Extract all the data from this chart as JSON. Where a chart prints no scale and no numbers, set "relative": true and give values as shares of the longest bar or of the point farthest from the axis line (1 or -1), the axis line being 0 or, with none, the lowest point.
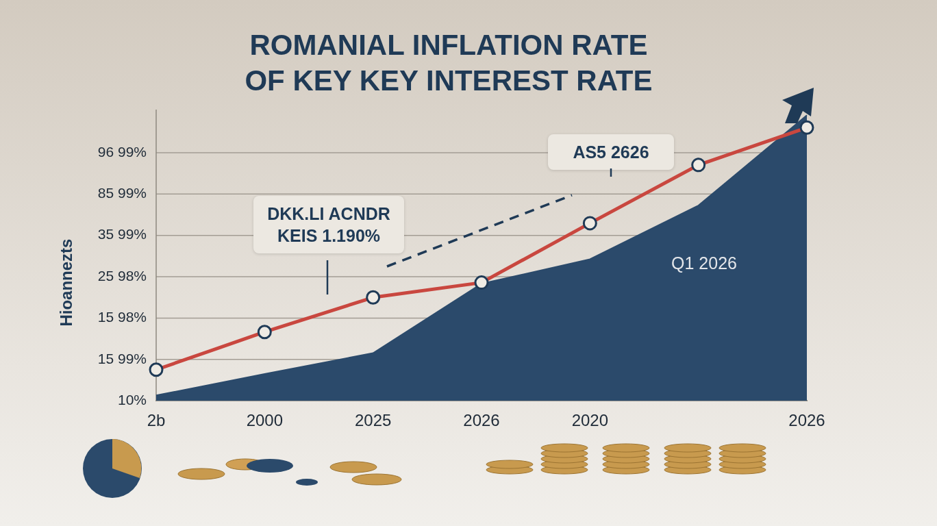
{
  "chart_data": {
    "type": "line",
    "title": "ROMANIAL INFLATION RATE\nOF KEY KEY INTEREST RATE",
    "ylabel": "Hioannezts",
    "relative": true,
    "categories": [
      "2b",
      "2000",
      "2025",
      "2026",
      "2020",
      null,
      "2026"
    ],
    "series": [
      {
        "type": "area",
        "color": "#2b4a6b",
        "values": [
          0.019,
          0.094,
          0.167,
          0.41,
          0.496,
          0.684,
          1
        ]
      },
      {
        "color": "#c9473f",
        "marker": "circle",
        "values": [
          0.109,
          0.241,
          0.362,
          0.414,
          0.622,
          0.826,
          0.957
        ]
      }
    ],
    "grid": "y",
    "annotations": [
      "DKK.LI ACNDR KEIS 1.190%",
      "AS5 2626",
      "Q1 2026",
      "96 99%",
      "85 99%",
      "35 99%",
      "25 98%",
      "15 98%",
      "15 99%",
      "10%"
    ]
  }
}
